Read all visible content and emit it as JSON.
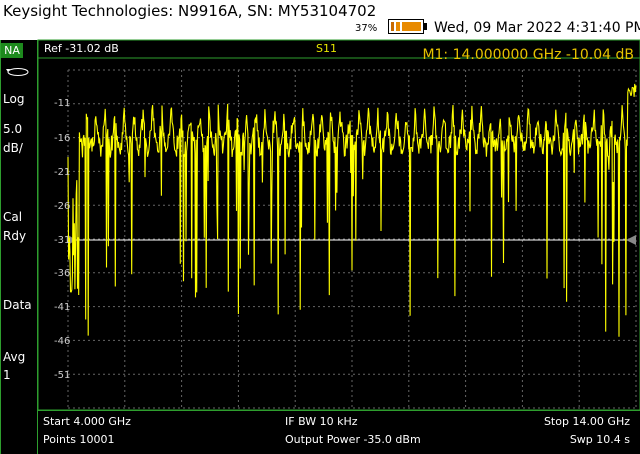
{
  "titlebar": {
    "title": "Keysight Technologies: N9916A, SN: MY53104702",
    "battery_percent": "37%",
    "datetime": "Wed, 09 Mar  2022  4:31:40 PM"
  },
  "left_panel": {
    "mode": "NA",
    "scale_type": "Log",
    "scale_value": "5.0",
    "scale_unit": "dB/",
    "cal_line1": "Cal",
    "cal_line2": "Rdy",
    "data_label": "Data",
    "avg_label": "Avg",
    "avg_value": "1"
  },
  "plot": {
    "ref": "Ref -31.02 dB",
    "trace": "S11",
    "marker": "M1:  14.000000 GHz -10.04 dB",
    "y_ticks": [
      "-11",
      "-16",
      "-21",
      "-26",
      "-31",
      "-36",
      "-41",
      "-46",
      "-51"
    ],
    "trace_color": "#ffff00",
    "ref_line_color": "#ffffff"
  },
  "bottom": {
    "start": "Start 4.000 GHz",
    "points": "Points 10001",
    "ifbw": "IF BW 10 kHz",
    "power": "Output Power -35.0 dBm",
    "stop": "Stop 14.00 GHz",
    "sweep": "Swp 10.4 s"
  },
  "chart_data": {
    "type": "line",
    "x_range_ghz": [
      4.0,
      14.0
    ],
    "y_range_db": [
      -56.02,
      -6.02
    ],
    "reference_db": -31.02,
    "scale_db_per_div": 5.0,
    "marker": {
      "name": "M1",
      "x_ghz": 14.0,
      "y_db": -10.04
    }
  }
}
